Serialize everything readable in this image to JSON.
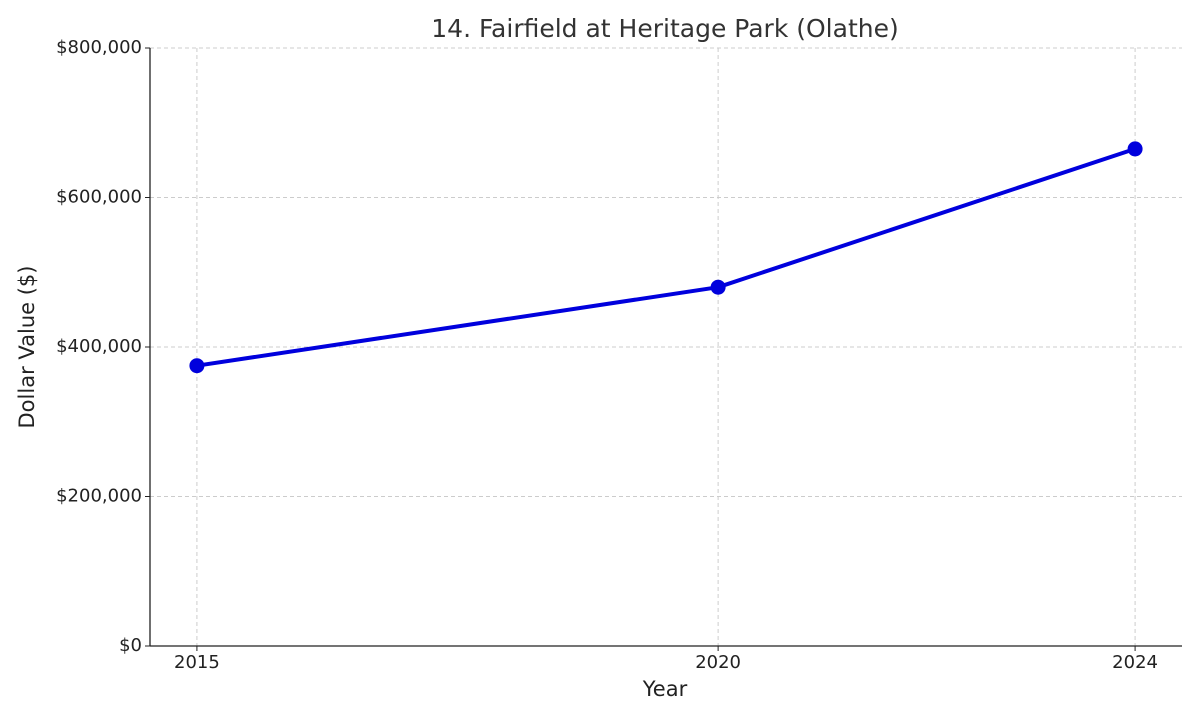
{
  "chart_data": {
    "type": "line",
    "title": "14. Fairfield at Heritage Park (Olathe)",
    "xlabel": "Year",
    "ylabel": "Dollar Value ($)",
    "x": [
      2015,
      2020,
      2024
    ],
    "series": [
      {
        "name": "Dollar Value",
        "color": "#0000dd",
        "values": [
          375000,
          480000,
          665000
        ]
      }
    ],
    "xlim": [
      2014.55,
      2024.45
    ],
    "xticks": [
      2015,
      2020,
      2024
    ],
    "ylim": [
      0,
      800000
    ],
    "yticks": [
      {
        "value": 0,
        "label": "$0"
      },
      {
        "value": 200000,
        "label": "$200,000"
      },
      {
        "value": 400000,
        "label": "$400,000"
      },
      {
        "value": 600000,
        "label": "$600,000"
      },
      {
        "value": 800000,
        "label": "$800,000"
      }
    ],
    "grid": true
  }
}
